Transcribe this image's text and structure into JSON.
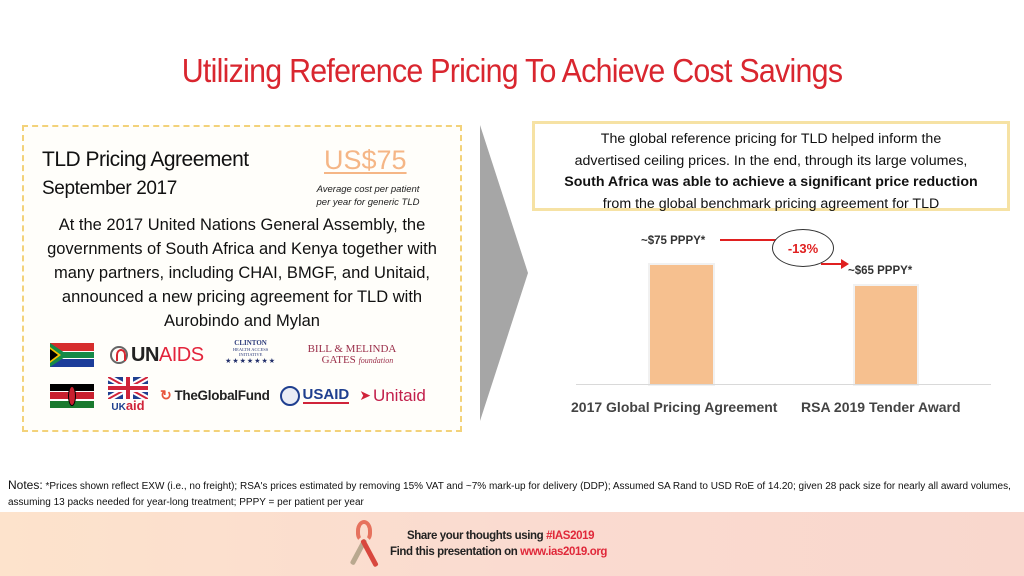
{
  "title": "Utilizing Reference Pricing To Achieve Cost Savings",
  "left_panel": {
    "heading": "TLD Pricing Agreement",
    "subheading": "September 2017",
    "price": "US$75",
    "price_caption_line1": "Average cost per patient",
    "price_caption_line2": "per year for generic TLD",
    "story_lines": [
      "At the 2017 United Nations General Assembly, the",
      "governments of South Africa and Kenya together with",
      "many partners, including CHAI, BMGF, and Unitaid,",
      "announced a new pricing agreement for TLD with",
      "Aurobindo and Mylan"
    ],
    "logos_row1": {
      "flag": "South Africa flag",
      "unaids_un": "UN",
      "unaids_aids": "AIDS",
      "chai_line1": "CLINTON",
      "chai_line2": "HEALTH ACCESS",
      "chai_line3": "INITIATIVE",
      "chai_stars": "★★★★★★★",
      "gates_line1": "BILL & MELINDA",
      "gates_line2": "GATES",
      "gates_line2_italic": "foundation"
    },
    "logos_row2": {
      "flag": "Kenya flag",
      "ukaid_uk": "UK",
      "ukaid_aid": "aid",
      "globalfund_icon": "↻",
      "globalfund": "TheGlobalFund",
      "usaid": "USAID",
      "unitaid_icon": "➤",
      "unitaid": "Unitaid"
    }
  },
  "callout": {
    "line1": "The global reference pricing for TLD helped inform the",
    "line2": "advertised ceiling prices. In the end, through its large volumes,",
    "line3_bold": "South Africa was able to achieve a significant price reduction",
    "line4": "from the global benchmark pricing agreement for TLD"
  },
  "chart_data": {
    "type": "bar",
    "title": "",
    "categories": [
      "2017 Global Pricing Agreement",
      "RSA 2019 Tender Award"
    ],
    "values": [
      75,
      65
    ],
    "data_labels": [
      "~$75  PPPY*",
      "~$65 PPPY*"
    ],
    "annotation": "-13%",
    "xlabel": "",
    "ylabel": "",
    "grid": false,
    "legend": null,
    "bar_color": "#f6c08f",
    "annotation_color": "#e02020"
  },
  "notes": {
    "label": "Notes:",
    "text": " *Prices shown reflect EXW (i.e., no freight); RSA's prices estimated by removing 15% VAT and ~7% mark-up for delivery (DDP); Assumed SA Rand to USD RoE of 14.20; given 28 pack size for nearly all award volumes, assuming 13 packs needed for year-long treatment; PPPY = per patient per year"
  },
  "footer": {
    "line1_prefix": "Share your thoughts using ",
    "line1_hashtag": "#IAS2019",
    "line2_prefix": "Find this presentation on ",
    "line2_url": "www.ias2019.org"
  },
  "colors": {
    "title": "#d9262f",
    "price": "#f5b686",
    "panel_border": "#f3d27a",
    "arrow": "#a6a6a6",
    "accent_red": "#e0283a"
  }
}
